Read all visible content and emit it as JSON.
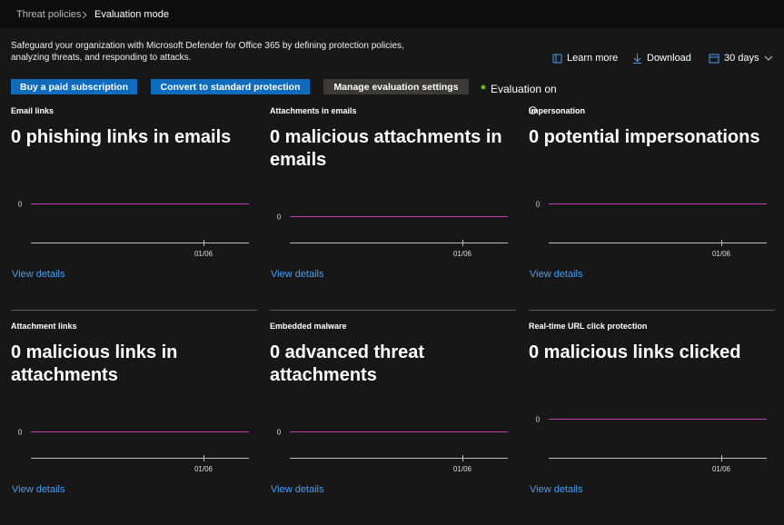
{
  "breadcrumb": {
    "items": [
      "Threat policies",
      "Evaluation mode"
    ]
  },
  "header": {
    "description": "Safeguard your organization with Microsoft Defender for Office 365 by defining protection policies, analyzing threats, and responding to attacks.",
    "actions": [
      "Learn more",
      "Download",
      "30 days"
    ],
    "buttons": [
      "Buy a paid subscription",
      "Convert to standard protection",
      "Manage evaluation settings"
    ],
    "status": "Evaluation on"
  },
  "cards": [
    {
      "label": "Email links",
      "headline": "0 phishing links in emails",
      "ytick": 0,
      "xtick": "01/06",
      "link": "View details"
    },
    {
      "label": "Attachments in emails",
      "headline": "0 malicious attachments in emails",
      "ytick": 0,
      "xtick": "01/06",
      "link": "View details"
    },
    {
      "label": "Impersonation",
      "headline": "0 potential impersonations",
      "ytick": 0,
      "xtick": "01/06",
      "link": "View details"
    },
    {
      "label": "Attachment links",
      "headline": "0 malicious links in attachments",
      "ytick": 0,
      "xtick": "01/06",
      "link": "View details"
    },
    {
      "label": "Embedded malware",
      "headline": "0 advanced threat attachments",
      "ytick": 0,
      "xtick": "01/06",
      "link": "View details"
    },
    {
      "label": "Real-time URL click protection",
      "headline": "0 malicious links clicked",
      "ytick": 0,
      "xtick": "01/06",
      "link": "View details"
    }
  ]
}
